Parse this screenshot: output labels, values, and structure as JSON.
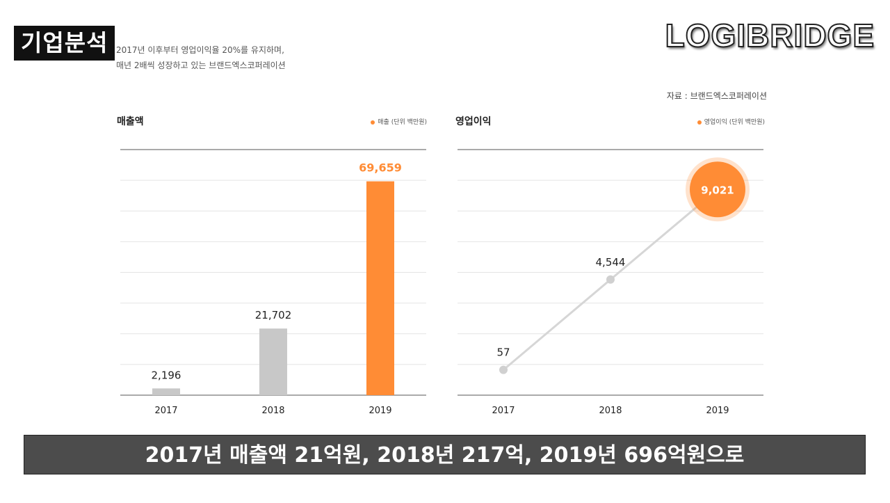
{
  "header": {
    "tag": "기업분석",
    "brand": "LOGIBRIDGE",
    "intro_line1": "2017년 이후부터 영업이익율 20%를 유지하며,",
    "intro_line2": "매년 2배씩 성장하고 있는 브랜드엑스코퍼레이션",
    "source": "자료 : 브랜드엑스코퍼레이션"
  },
  "colors": {
    "accent": "#FF8C35",
    "neutral": "#C8C8C8",
    "grid": "#E4E4E4"
  },
  "subtitle": "2017년 매출액 21억원, 2018년 217억, 2019년 696억원으로",
  "chart_data": [
    {
      "type": "bar",
      "title": "매출액",
      "legend": "매출 (단위 백만원)",
      "categories": [
        "2017",
        "2018",
        "2019"
      ],
      "values": [
        2196,
        21702,
        69659
      ],
      "labels": [
        "2,196",
        "21,702",
        "69,659"
      ],
      "highlight_index": 2,
      "ylim": [
        0,
        80000
      ],
      "grid": true,
      "legend_position": "top-right"
    },
    {
      "type": "line",
      "title": "영업이익",
      "legend": "영업이익 (단위 백만원)",
      "categories": [
        "2017",
        "2018",
        "2019"
      ],
      "values": [
        57,
        4544,
        9021
      ],
      "labels": [
        "57",
        "4,544",
        "9,021"
      ],
      "highlight_index": 2,
      "ylim": [
        -1200,
        11000
      ],
      "grid": true,
      "legend_position": "top-right"
    }
  ]
}
